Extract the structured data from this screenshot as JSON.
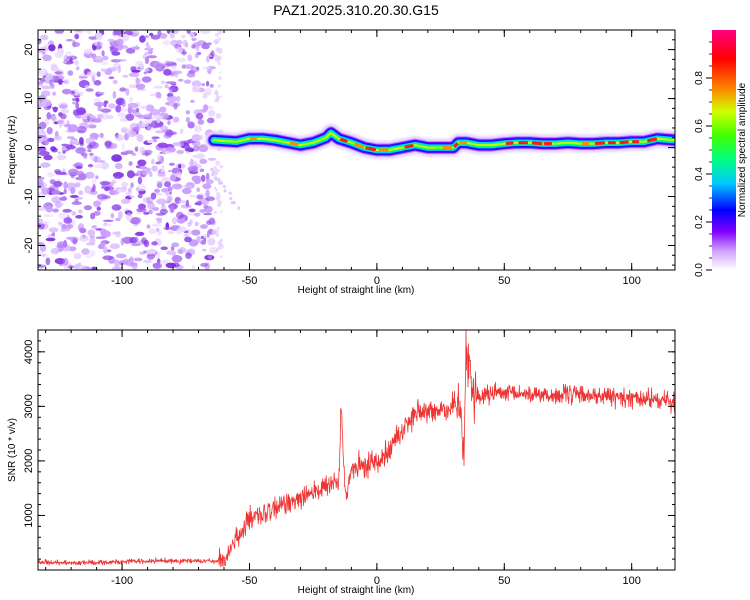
{
  "title": "PAZ1.2025.310.20.30.G15",
  "chart_data": [
    {
      "type": "heatmap",
      "xlabel": "Height of straight line (km)",
      "ylabel": "Frequency (Hz)",
      "xlim": [
        -133,
        117
      ],
      "ylim": [
        -25,
        24
      ],
      "xticks": [
        -100,
        -50,
        0,
        50,
        100
      ],
      "yticks": [
        -20,
        -10,
        0,
        10,
        20
      ],
      "colorbar": {
        "label": "Normalized spectral amplitude",
        "range": [
          0,
          1
        ],
        "ticks": [
          0.0,
          0.2,
          0.4,
          0.6,
          0.8
        ],
        "tick_labels": [
          "0.0",
          "0.2",
          "0.4",
          "0.6",
          "0.8"
        ],
        "colors": [
          "#ffffff",
          "#c080ff",
          "#8000ff",
          "#0000ff",
          "#00e0ff",
          "#00ff40",
          "#c0ff00",
          "#ff8000",
          "#ff0000",
          "#ff0080"
        ]
      },
      "noise_region": {
        "x_range": [
          -133,
          -64
        ],
        "freq_range": [
          -25,
          24
        ]
      },
      "signal_track": {
        "x": [
          -64,
          -55,
          -50,
          -45,
          -40,
          -35,
          -30,
          -25,
          -20,
          -18,
          -15,
          -10,
          -5,
          0,
          5,
          10,
          15,
          20,
          25,
          30,
          32,
          35,
          40,
          45,
          50,
          55,
          60,
          65,
          70,
          75,
          80,
          85,
          90,
          95,
          100,
          105,
          110,
          117
        ],
        "freq": [
          1.5,
          1.2,
          1.8,
          1.8,
          1.5,
          1.0,
          0.5,
          1.0,
          2.0,
          3.0,
          1.8,
          1.0,
          0.0,
          -0.5,
          -0.5,
          0.0,
          0.5,
          0.0,
          0.0,
          0.0,
          1.0,
          1.0,
          0.5,
          0.5,
          0.8,
          1.0,
          1.0,
          0.8,
          0.8,
          1.0,
          0.8,
          0.8,
          1.0,
          1.0,
          1.2,
          1.2,
          1.8,
          1.5
        ]
      },
      "scatter_tail": {
        "x": [
          -65,
          -55
        ],
        "freq": [
          -4,
          -12
        ]
      }
    },
    {
      "type": "line",
      "xlabel": "Height of straight line (km)",
      "ylabel": "SNR (10 * v/v)",
      "xlim": [
        -133,
        117
      ],
      "ylim": [
        0,
        4400
      ],
      "xticks": [
        -100,
        -50,
        0,
        50,
        100
      ],
      "yticks": [
        1000,
        2000,
        3000,
        4000
      ],
      "color": "#ee3333",
      "series": [
        {
          "name": "SNR",
          "x": [
            -133,
            -120,
            -100,
            -80,
            -65,
            -60,
            -58,
            -55,
            -52,
            -50,
            -45,
            -40,
            -35,
            -30,
            -25,
            -20,
            -15,
            -14,
            -13,
            -12,
            -10,
            -5,
            0,
            5,
            10,
            15,
            20,
            25,
            30,
            33,
            34,
            35,
            36,
            37,
            38,
            40,
            45,
            50,
            60,
            70,
            80,
            90,
            100,
            110,
            117
          ],
          "values": [
            150,
            130,
            150,
            170,
            160,
            170,
            350,
            600,
            800,
            900,
            1000,
            1100,
            1250,
            1350,
            1450,
            1500,
            1600,
            3150,
            1700,
            1300,
            1850,
            1900,
            2000,
            2250,
            2550,
            2900,
            2850,
            2950,
            3000,
            3050,
            1950,
            3900,
            4200,
            3500,
            3200,
            3150,
            3250,
            3220,
            3230,
            3200,
            3220,
            3180,
            3150,
            3120,
            3080
          ]
        }
      ]
    }
  ]
}
